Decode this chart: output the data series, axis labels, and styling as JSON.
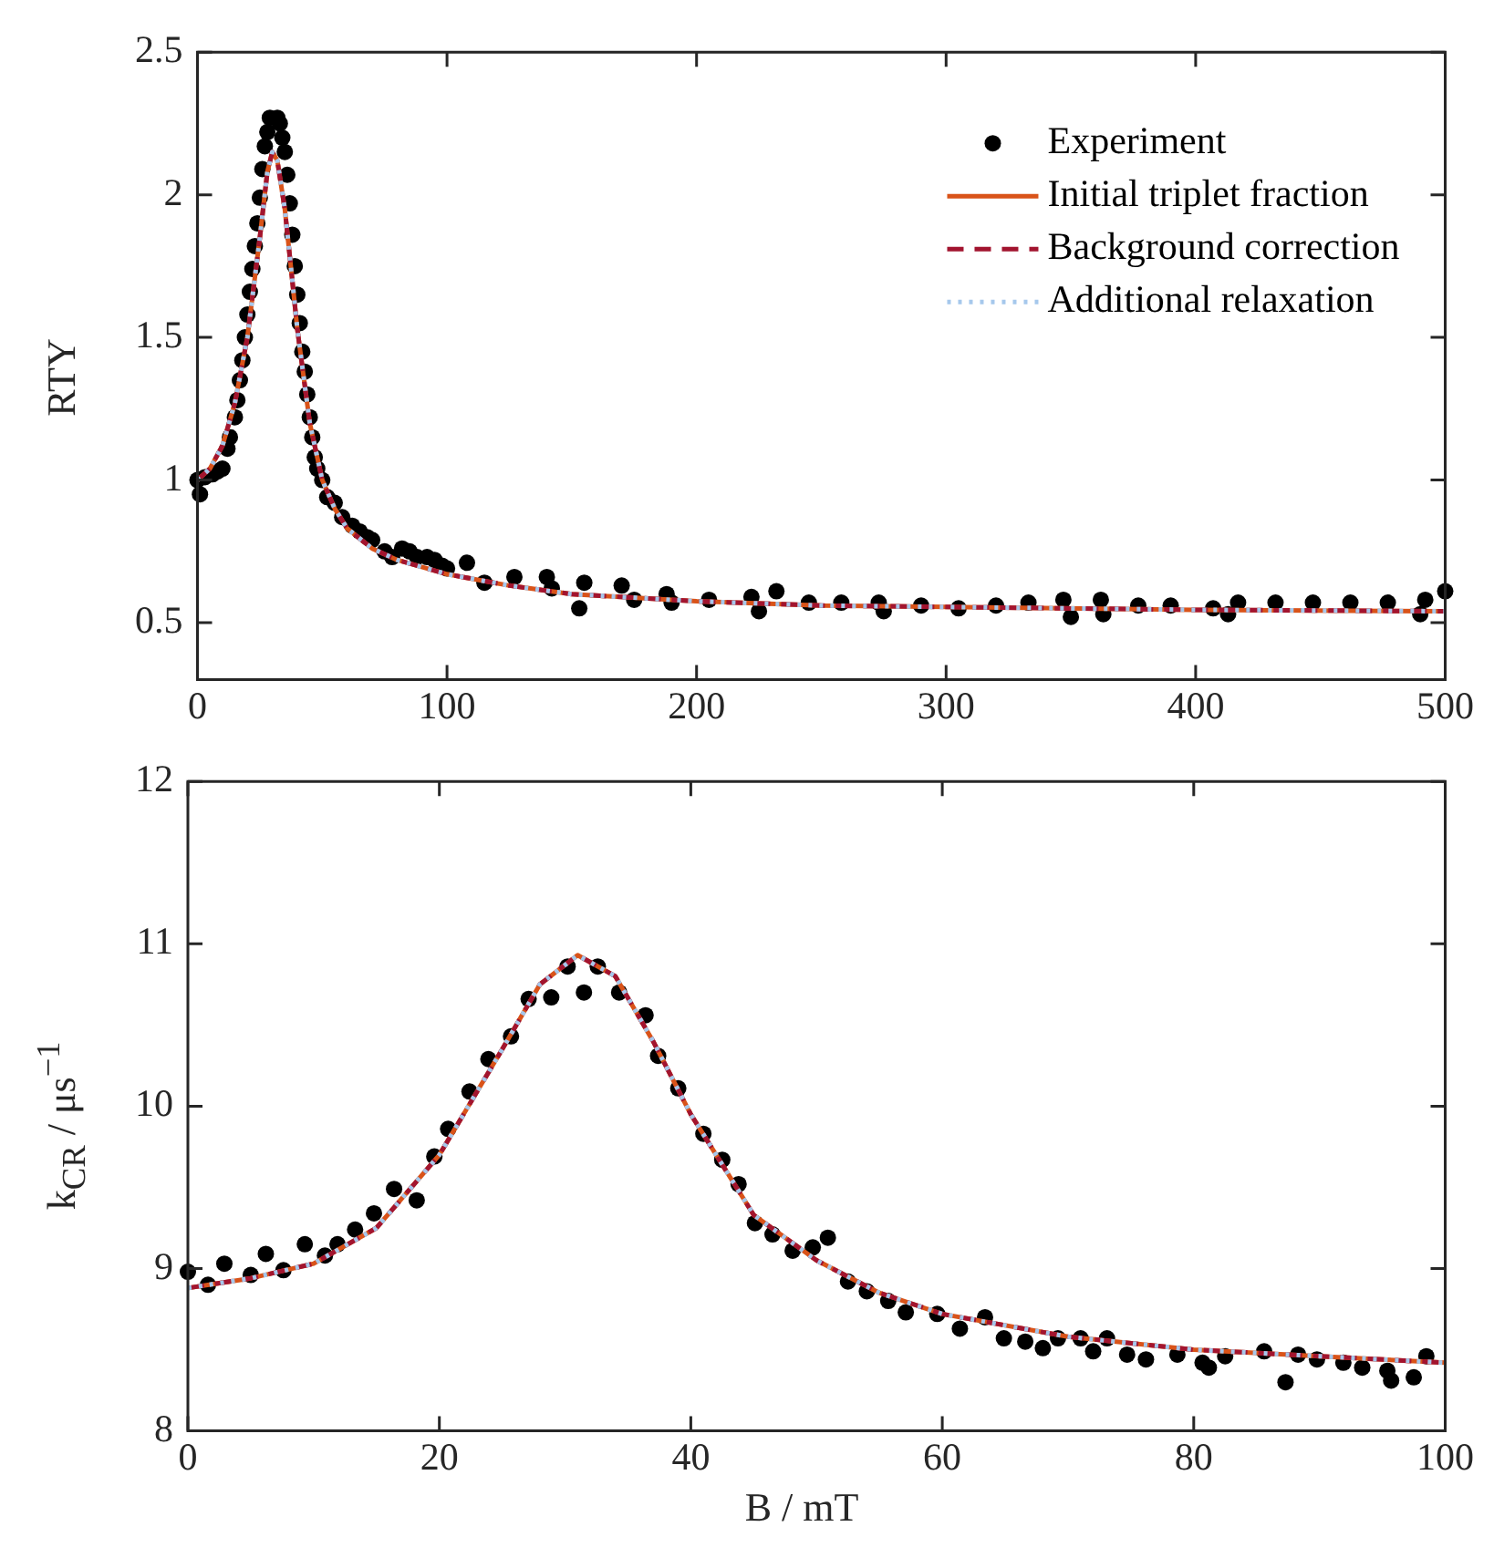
{
  "chart_data": [
    {
      "type": "scatter",
      "ylabel": "RTY",
      "xlim": [
        0,
        500
      ],
      "xticks": [
        0,
        100,
        200,
        300,
        400,
        500
      ],
      "ylim": [
        0.3,
        2.5
      ],
      "yticks": [
        0.5,
        1,
        1.5,
        2,
        2.5
      ],
      "grid": false,
      "legend": "top right",
      "series": [
        {
          "name": "Experiment",
          "type": "scatter",
          "marker": "circle",
          "color": "#000000",
          "x": [
            0,
            1,
            3,
            6,
            8,
            10,
            12,
            13,
            15,
            16,
            17,
            18,
            19,
            20,
            21,
            22,
            23,
            24,
            25,
            26,
            27,
            28,
            29,
            32,
            33,
            34,
            35,
            36,
            37,
            38,
            39,
            40,
            41,
            42,
            43,
            44,
            45,
            46,
            47,
            48,
            50,
            52,
            55,
            58,
            62,
            65,
            68,
            70,
            75,
            78,
            82,
            85,
            88,
            92,
            95,
            98,
            100,
            108,
            115,
            127,
            140,
            142,
            153,
            155,
            170,
            175,
            188,
            190,
            205,
            222,
            225,
            232,
            245,
            258,
            273,
            275,
            290,
            305,
            320,
            333,
            347,
            350,
            362,
            363,
            377,
            390,
            407,
            413,
            417,
            432,
            447,
            462,
            477,
            490,
            492,
            500
          ],
          "values": [
            1.0,
            0.95,
            1.01,
            1.02,
            1.03,
            1.04,
            1.11,
            1.15,
            1.22,
            1.28,
            1.35,
            1.42,
            1.5,
            1.58,
            1.66,
            1.74,
            1.82,
            1.9,
            1.99,
            2.09,
            2.17,
            2.22,
            2.27,
            2.27,
            2.25,
            2.2,
            2.15,
            2.07,
            1.97,
            1.86,
            1.75,
            1.65,
            1.55,
            1.45,
            1.38,
            1.3,
            1.22,
            1.15,
            1.08,
            1.04,
            1.0,
            0.94,
            0.92,
            0.87,
            0.84,
            0.82,
            0.8,
            0.79,
            0.75,
            0.73,
            0.76,
            0.75,
            0.73,
            0.73,
            0.72,
            0.7,
            0.69,
            0.71,
            0.64,
            0.66,
            0.66,
            0.62,
            0.55,
            0.64,
            0.63,
            0.58,
            0.6,
            0.57,
            0.58,
            0.59,
            0.54,
            0.61,
            0.57,
            0.57,
            0.57,
            0.54,
            0.56,
            0.55,
            0.56,
            0.57,
            0.58,
            0.52,
            0.58,
            0.53,
            0.56,
            0.56,
            0.55,
            0.53,
            0.57,
            0.57,
            0.57,
            0.57,
            0.57,
            0.53,
            0.58,
            0.61
          ]
        },
        {
          "name": "Initial triplet fraction",
          "type": "line",
          "line_style": "solid",
          "color": "#d95319",
          "x": [
            0,
            5,
            10,
            15,
            20,
            25,
            28,
            30,
            32,
            35,
            38,
            40,
            45,
            50,
            55,
            60,
            70,
            80,
            100,
            125,
            150,
            200,
            250,
            300,
            400,
            500
          ],
          "values": [
            1.0,
            1.04,
            1.12,
            1.27,
            1.5,
            1.85,
            2.08,
            2.15,
            2.12,
            1.95,
            1.7,
            1.53,
            1.2,
            1.0,
            0.9,
            0.83,
            0.76,
            0.72,
            0.67,
            0.63,
            0.6,
            0.575,
            0.56,
            0.555,
            0.545,
            0.54
          ]
        },
        {
          "name": "Background correction",
          "type": "line",
          "line_style": "dashed",
          "color": "#a2142f",
          "x": [
            0,
            5,
            10,
            15,
            20,
            25,
            28,
            30,
            32,
            35,
            38,
            40,
            45,
            50,
            55,
            60,
            70,
            80,
            100,
            125,
            150,
            200,
            250,
            300,
            400,
            500
          ],
          "values": [
            1.0,
            1.04,
            1.12,
            1.27,
            1.5,
            1.85,
            2.08,
            2.15,
            2.12,
            1.95,
            1.7,
            1.53,
            1.2,
            1.0,
            0.9,
            0.83,
            0.76,
            0.72,
            0.67,
            0.63,
            0.6,
            0.575,
            0.56,
            0.555,
            0.545,
            0.54
          ]
        },
        {
          "name": "Additional relaxation",
          "type": "line",
          "line_style": "dotted",
          "color": "#a6c8ec",
          "x": [
            0,
            5,
            10,
            15,
            20,
            25,
            28,
            30,
            32,
            35,
            38,
            40,
            45,
            50,
            55,
            60,
            70,
            80,
            100,
            125,
            150,
            200,
            250,
            300,
            400,
            500
          ],
          "values": [
            1.0,
            1.04,
            1.12,
            1.27,
            1.5,
            1.85,
            2.08,
            2.15,
            2.12,
            1.95,
            1.7,
            1.53,
            1.2,
            1.0,
            0.9,
            0.83,
            0.76,
            0.72,
            0.67,
            0.63,
            0.6,
            0.575,
            0.56,
            0.555,
            0.545,
            0.54
          ]
        }
      ]
    },
    {
      "type": "scatter",
      "xlabel": "B / mT",
      "ylabel": "k$_{CR}$ / μs$^{−1}$",
      "xlim": [
        0,
        100
      ],
      "xticks": [
        0,
        20,
        40,
        60,
        80,
        100
      ],
      "ylim": [
        8,
        12
      ],
      "yticks": [
        8,
        9,
        10,
        11,
        12
      ],
      "grid": false,
      "legend": false,
      "series": [
        {
          "type": "scatter",
          "marker": "circle",
          "color": "#000000",
          "x": [
            0,
            1.6,
            2.9,
            5,
            6.2,
            7.6,
            9.3,
            10.9,
            11.9,
            13.3,
            14.8,
            16.4,
            18.2,
            19.6,
            20.7,
            22.4,
            23.9,
            25.7,
            27.1,
            28.9,
            30.2,
            31.5,
            32.6,
            34.3,
            36.4,
            37.4,
            39,
            41,
            42.5,
            43.8,
            45.1,
            46.5,
            48.1,
            49.7,
            50.9,
            52.5,
            54,
            55.7,
            57.1,
            59.6,
            61.4,
            63.4,
            64.9,
            66.6,
            68,
            69.2,
            71,
            72,
            73.1,
            74.7,
            76.2,
            78.7,
            80.7,
            81.2,
            82.5,
            85.6,
            87.3,
            88.3,
            89.8,
            91.9,
            93.4,
            95.4,
            95.7,
            97.5,
            98.5
          ],
          "values": [
            8.98,
            8.9,
            9.03,
            8.96,
            9.09,
            8.99,
            9.15,
            9.08,
            9.15,
            9.24,
            9.34,
            9.49,
            9.42,
            9.69,
            9.86,
            10.09,
            10.29,
            10.43,
            10.66,
            10.67,
            10.86,
            10.7,
            10.86,
            10.7,
            10.56,
            10.31,
            10.11,
            9.83,
            9.67,
            9.52,
            9.28,
            9.21,
            9.11,
            9.13,
            9.19,
            8.92,
            8.86,
            8.8,
            8.73,
            8.72,
            8.63,
            8.7,
            8.57,
            8.55,
            8.51,
            8.57,
            8.57,
            8.49,
            8.57,
            8.47,
            8.44,
            8.47,
            8.42,
            8.39,
            8.46,
            8.49,
            8.3,
            8.47,
            8.44,
            8.42,
            8.39,
            8.37,
            8.31,
            8.33,
            8.46
          ]
        },
        {
          "type": "line",
          "line_style": "solid",
          "color": "#d95319",
          "x": [
            0,
            5,
            10,
            15,
            20,
            25,
            28,
            31,
            34,
            37,
            40,
            45,
            50,
            55,
            60,
            70,
            80,
            90,
            100
          ],
          "values": [
            8.88,
            8.94,
            9.03,
            9.25,
            9.7,
            10.35,
            10.75,
            10.93,
            10.8,
            10.4,
            9.95,
            9.33,
            9.05,
            8.85,
            8.72,
            8.58,
            8.5,
            8.46,
            8.42
          ]
        },
        {
          "type": "line",
          "line_style": "dashed",
          "color": "#a2142f",
          "x": [
            0,
            5,
            10,
            15,
            20,
            25,
            28,
            31,
            34,
            37,
            40,
            45,
            50,
            55,
            60,
            70,
            80,
            90,
            100
          ],
          "values": [
            8.88,
            8.94,
            9.03,
            9.25,
            9.7,
            10.35,
            10.75,
            10.93,
            10.8,
            10.4,
            9.95,
            9.33,
            9.05,
            8.85,
            8.72,
            8.58,
            8.5,
            8.46,
            8.42
          ]
        },
        {
          "type": "line",
          "line_style": "dotted",
          "color": "#a6c8ec",
          "x": [
            0,
            5,
            10,
            15,
            20,
            25,
            28,
            31,
            34,
            37,
            40,
            45,
            50,
            55,
            60,
            70,
            80,
            90,
            100
          ],
          "values": [
            8.88,
            8.94,
            9.03,
            9.25,
            9.7,
            10.35,
            10.75,
            10.93,
            10.8,
            10.4,
            9.95,
            9.33,
            9.05,
            8.85,
            8.72,
            8.58,
            8.5,
            8.46,
            8.42
          ]
        }
      ]
    }
  ]
}
